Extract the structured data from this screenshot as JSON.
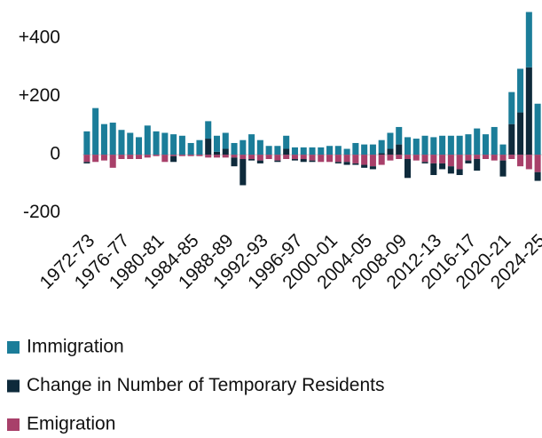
{
  "chart_data": {
    "type": "bar",
    "stacked": true,
    "categories": [
      "1972-73",
      null,
      null,
      null,
      "1976-77",
      null,
      null,
      null,
      "1980-81",
      null,
      null,
      null,
      "1984-85",
      null,
      null,
      null,
      "1988-89",
      null,
      null,
      null,
      "1992-93",
      null,
      null,
      null,
      "1996-97",
      null,
      null,
      null,
      "2000-01",
      null,
      null,
      null,
      "2004-05",
      null,
      null,
      null,
      "2008-09",
      null,
      null,
      null,
      "2012-13",
      null,
      null,
      null,
      "2016-17",
      null,
      null,
      null,
      "2020-21",
      null,
      null,
      null,
      "2024-25"
    ],
    "series": [
      {
        "name": "Immigration",
        "color": "#1b7d99",
        "values": [
          80,
          160,
          105,
          110,
          85,
          75,
          60,
          100,
          80,
          75,
          70,
          65,
          40,
          50,
          60,
          55,
          55,
          40,
          50,
          70,
          50,
          30,
          30,
          45,
          25,
          25,
          25,
          25,
          30,
          30,
          20,
          40,
          35,
          35,
          45,
          55,
          60,
          60,
          55,
          65,
          60,
          65,
          65,
          65,
          70,
          90,
          70,
          95,
          35,
          110,
          150,
          190,
          175
        ]
      },
      {
        "name": "Change in Number of Temporary Residents",
        "color": "#0e2a3b",
        "values": [
          -5,
          0,
          0,
          0,
          0,
          0,
          0,
          0,
          0,
          0,
          -20,
          0,
          0,
          0,
          55,
          10,
          20,
          -30,
          -90,
          -5,
          -10,
          0,
          -5,
          20,
          -5,
          -10,
          -5,
          0,
          0,
          -5,
          -10,
          -5,
          -10,
          -10,
          5,
          20,
          35,
          -65,
          0,
          -5,
          -40,
          -20,
          -25,
          -20,
          -10,
          -40,
          0,
          0,
          -55,
          105,
          145,
          300,
          -30
        ]
      },
      {
        "name": "Emigration",
        "color": "#a8406a",
        "values": [
          -25,
          -25,
          -20,
          -45,
          -15,
          -15,
          -15,
          -10,
          -5,
          -25,
          -5,
          -5,
          -5,
          -5,
          -10,
          -10,
          -10,
          -10,
          -15,
          -15,
          -20,
          -15,
          -20,
          -15,
          -15,
          -15,
          -20,
          -25,
          -25,
          -25,
          -25,
          -30,
          -35,
          -40,
          -35,
          -20,
          -15,
          -15,
          -20,
          -25,
          -30,
          -30,
          -40,
          -50,
          -20,
          -15,
          -15,
          -20,
          -20,
          -15,
          -40,
          -50,
          -60
        ]
      }
    ],
    "ylim": [
      -250,
      530
    ],
    "yticks": [
      {
        "value": 400,
        "label": "+400"
      },
      {
        "value": 200,
        "label": "+200"
      },
      0,
      -200
    ],
    "grid": false,
    "legend": "bottom"
  }
}
